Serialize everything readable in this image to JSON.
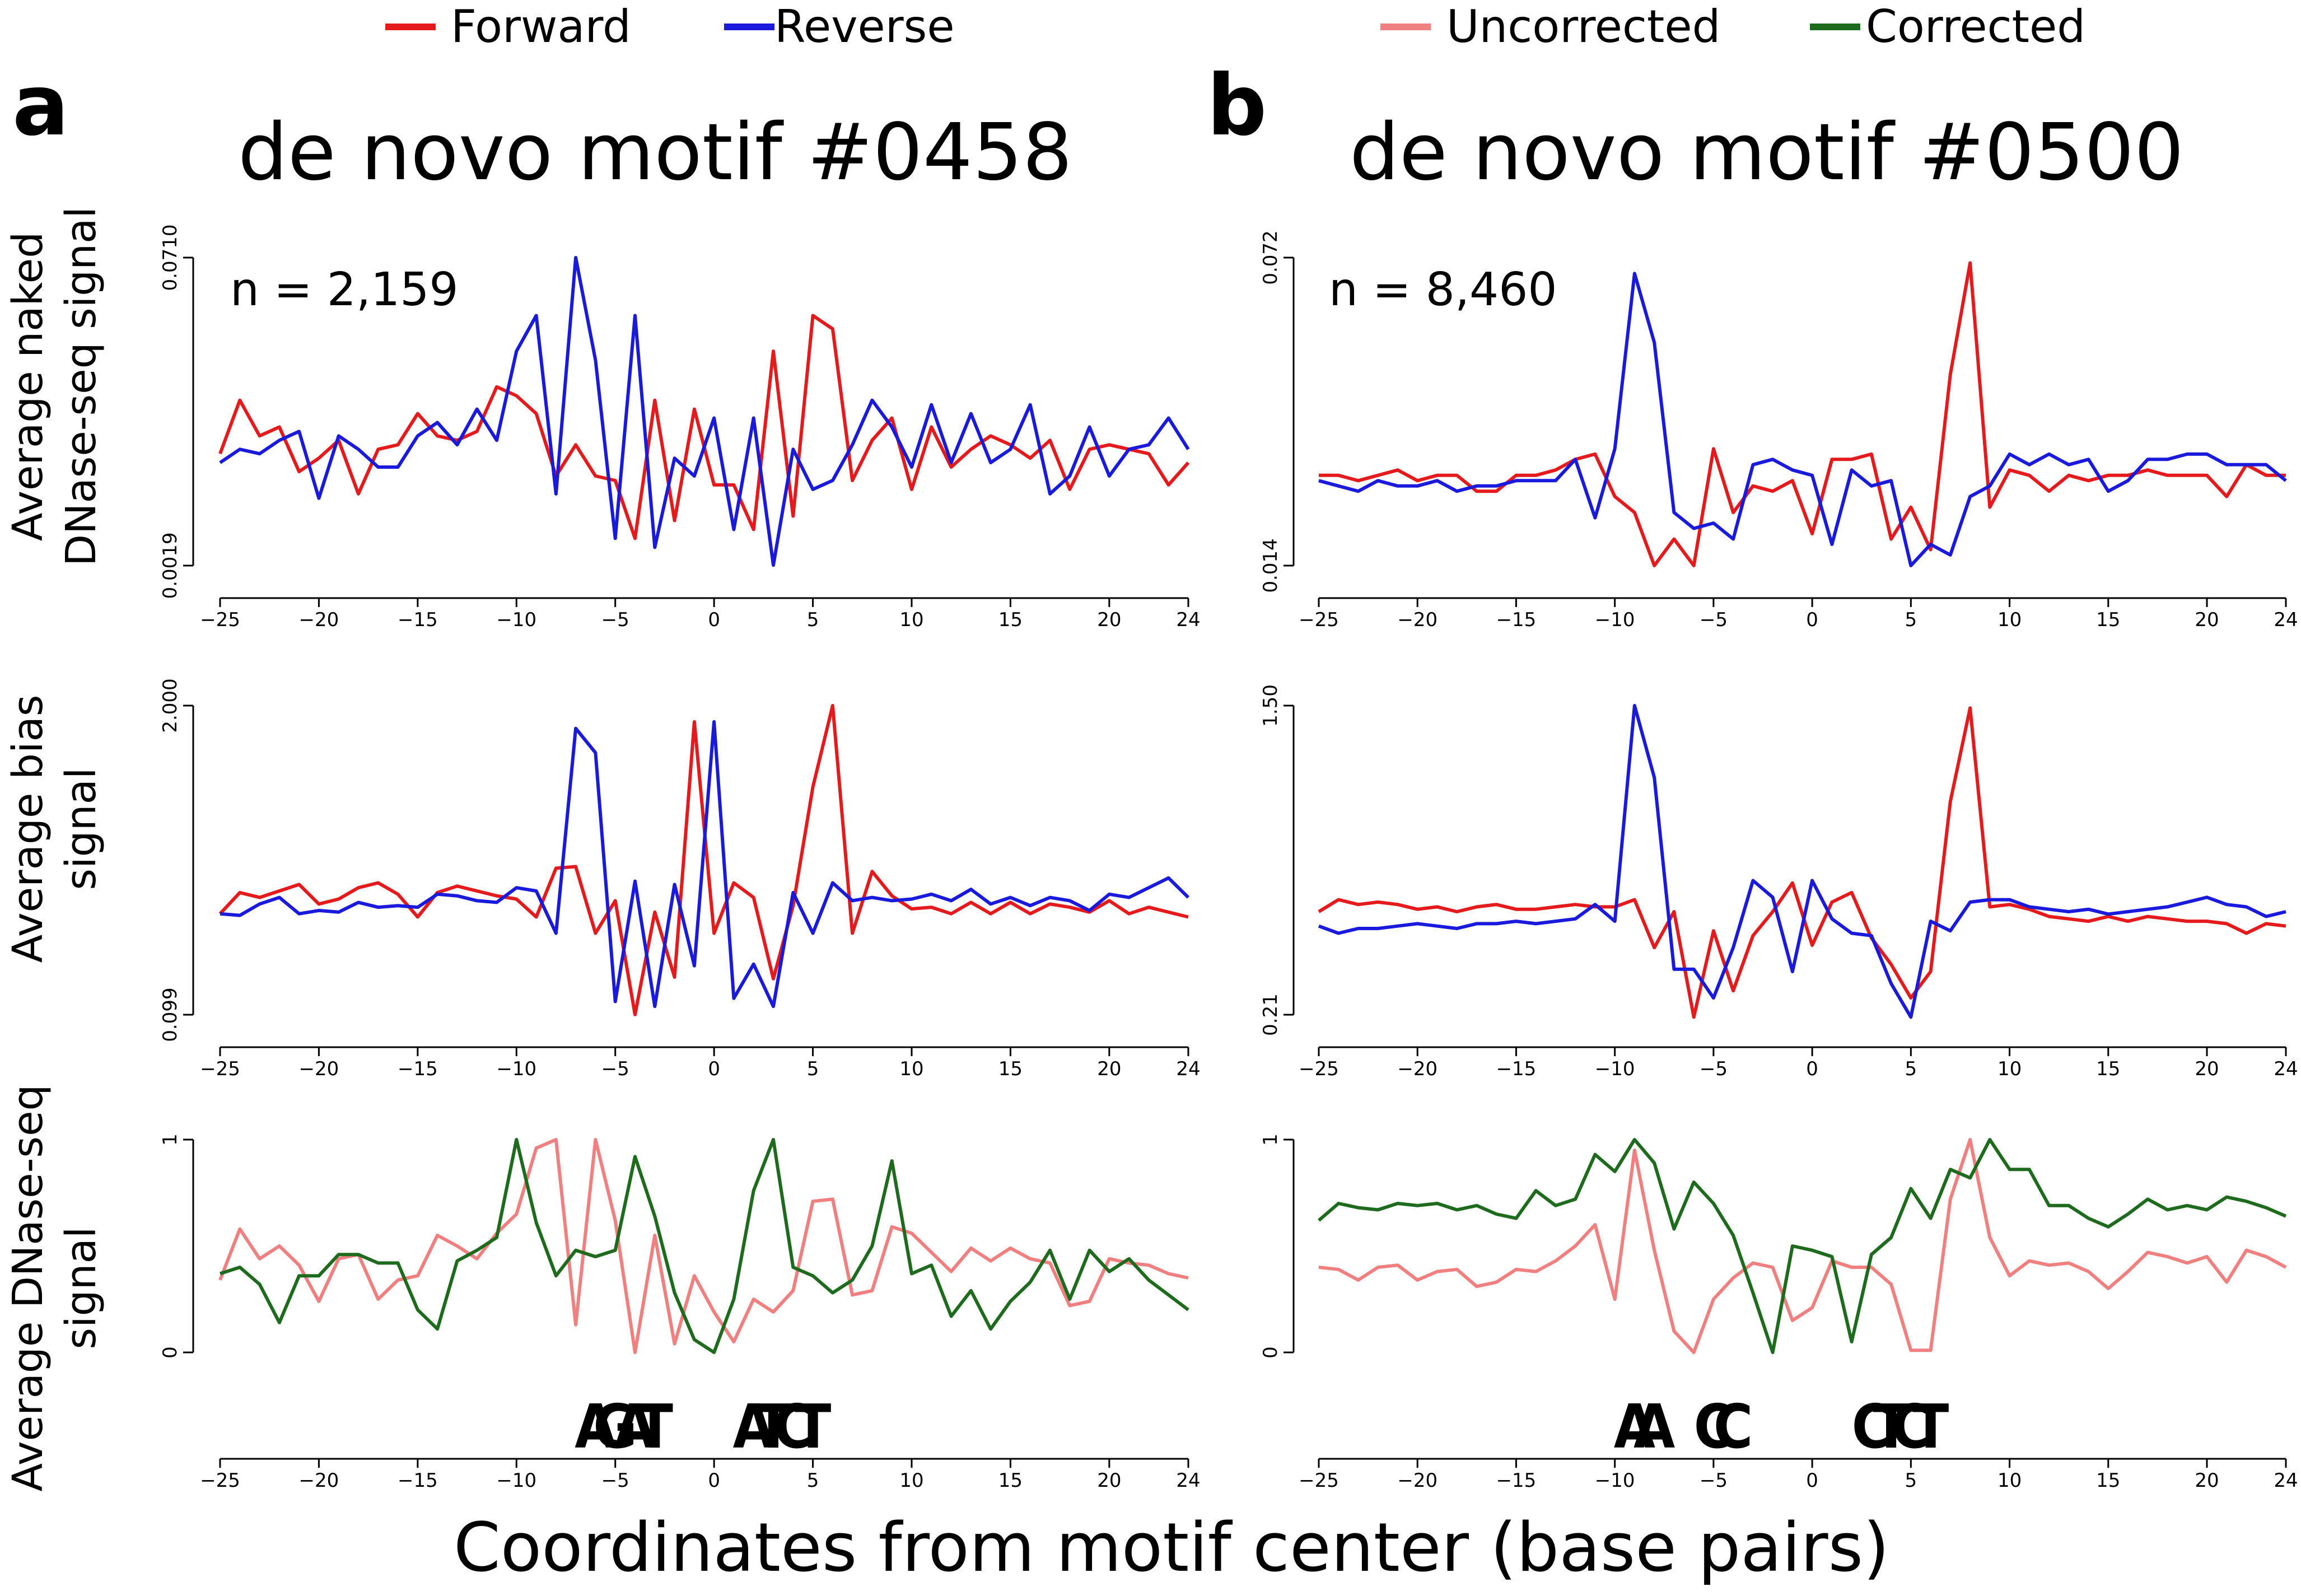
{
  "legends": [
    {
      "items": [
        {
          "label": "Forward",
          "color": "#e41a1c"
        },
        {
          "label": "Reverse",
          "color": "#1a1adc"
        }
      ]
    },
    {
      "items": [
        {
          "label": "Uncorrected",
          "color": "#f08080"
        },
        {
          "label": "Corrected",
          "color": "#1e6b1e"
        }
      ]
    }
  ],
  "panels": [
    {
      "letter": "a",
      "title": "de novo motif #0458"
    },
    {
      "letter": "b",
      "title": "de novo motif #0500"
    }
  ],
  "row_labels": [
    [
      "Average naked",
      "DNase-seq signal"
    ],
    [
      "Average bias",
      "signal"
    ],
    [
      "Average DNase-seq",
      "signal"
    ]
  ],
  "xlabel": "Coordinates from motif center (base pairs)",
  "x_ticks": [
    "−25",
    "−20",
    "−15",
    "−10",
    "−5",
    "0",
    "5",
    "10",
    "15",
    "20",
    "24"
  ],
  "motif_logos": [
    {
      "sites": [
        {
          "x": -6,
          "text": "AGAT"
        },
        {
          "x": 2,
          "text": "ATCT"
        }
      ]
    },
    {
      "sites": [
        {
          "x": -9,
          "text": "AA"
        },
        {
          "x": -5,
          "text": "CC"
        },
        {
          "x": 3,
          "text": "CTCT"
        }
      ]
    }
  ],
  "chart_data": [
    {
      "type": "line",
      "panel": "a",
      "row": 1,
      "annotation": "n = 2,159",
      "ylim": [
        0.0019,
        0.071
      ],
      "yticks": [
        "0.0019",
        "0.0710"
      ],
      "x": [
        -25,
        -24,
        -23,
        -22,
        -21,
        -20,
        -19,
        -18,
        -17,
        -16,
        -15,
        -14,
        -13,
        -12,
        -11,
        -10,
        -9,
        -8,
        -7,
        -6,
        -5,
        -4,
        -3,
        -2,
        -1,
        0,
        1,
        2,
        3,
        4,
        5,
        6,
        7,
        8,
        9,
        10,
        11,
        12,
        13,
        14,
        15,
        16,
        17,
        18,
        19,
        20,
        21,
        22,
        23,
        24
      ],
      "series": [
        {
          "name": "Forward",
          "color": "#e41a1c",
          "values": [
            0.027,
            0.039,
            0.031,
            0.033,
            0.023,
            0.026,
            0.03,
            0.018,
            0.028,
            0.029,
            0.036,
            0.031,
            0.03,
            0.032,
            0.042,
            0.04,
            0.036,
            0.022,
            0.029,
            0.022,
            0.021,
            0.008,
            0.039,
            0.012,
            0.037,
            0.02,
            0.02,
            0.01,
            0.05,
            0.013,
            0.058,
            0.055,
            0.021,
            0.03,
            0.035,
            0.019,
            0.033,
            0.024,
            0.028,
            0.031,
            0.029,
            0.026,
            0.03,
            0.019,
            0.028,
            0.029,
            0.028,
            0.027,
            0.02,
            0.025
          ]
        },
        {
          "name": "Reverse",
          "color": "#1a1adc",
          "values": [
            0.025,
            0.028,
            0.027,
            0.03,
            0.032,
            0.017,
            0.031,
            0.028,
            0.024,
            0.024,
            0.031,
            0.034,
            0.029,
            0.037,
            0.03,
            0.05,
            0.058,
            0.018,
            0.071,
            0.048,
            0.008,
            0.058,
            0.006,
            0.026,
            0.022,
            0.035,
            0.01,
            0.035,
            0.002,
            0.028,
            0.019,
            0.021,
            0.029,
            0.039,
            0.033,
            0.024,
            0.038,
            0.025,
            0.036,
            0.025,
            0.028,
            0.038,
            0.018,
            0.022,
            0.033,
            0.022,
            0.028,
            0.029,
            0.035,
            0.028
          ]
        }
      ]
    },
    {
      "type": "line",
      "panel": "b",
      "row": 1,
      "annotation": "n = 8,460",
      "ylim": [
        0.014,
        0.072
      ],
      "yticks": [
        "0.014",
        "0.072"
      ],
      "x": [
        -25,
        -24,
        -23,
        -22,
        -21,
        -20,
        -19,
        -18,
        -17,
        -16,
        -15,
        -14,
        -13,
        -12,
        -11,
        -10,
        -9,
        -8,
        -7,
        -6,
        -5,
        -4,
        -3,
        -2,
        -1,
        0,
        1,
        2,
        3,
        4,
        5,
        6,
        7,
        8,
        9,
        10,
        11,
        12,
        13,
        14,
        15,
        16,
        17,
        18,
        19,
        20,
        21,
        22,
        23,
        24
      ],
      "series": [
        {
          "name": "Forward",
          "color": "#e41a1c",
          "values": [
            0.031,
            0.031,
            0.03,
            0.031,
            0.032,
            0.03,
            0.031,
            0.031,
            0.028,
            0.028,
            0.031,
            0.031,
            0.032,
            0.034,
            0.035,
            0.027,
            0.024,
            0.014,
            0.019,
            0.014,
            0.036,
            0.024,
            0.029,
            0.028,
            0.03,
            0.02,
            0.034,
            0.034,
            0.035,
            0.019,
            0.025,
            0.017,
            0.05,
            0.071,
            0.025,
            0.032,
            0.031,
            0.028,
            0.031,
            0.03,
            0.031,
            0.031,
            0.032,
            0.031,
            0.031,
            0.031,
            0.027,
            0.033,
            0.031,
            0.031
          ]
        },
        {
          "name": "Reverse",
          "color": "#1a1adc",
          "values": [
            0.03,
            0.029,
            0.028,
            0.03,
            0.029,
            0.029,
            0.03,
            0.028,
            0.029,
            0.029,
            0.03,
            0.03,
            0.03,
            0.034,
            0.023,
            0.036,
            0.069,
            0.056,
            0.024,
            0.021,
            0.022,
            0.019,
            0.033,
            0.034,
            0.032,
            0.031,
            0.018,
            0.032,
            0.029,
            0.03,
            0.014,
            0.018,
            0.016,
            0.027,
            0.029,
            0.035,
            0.033,
            0.035,
            0.033,
            0.034,
            0.028,
            0.03,
            0.034,
            0.034,
            0.035,
            0.035,
            0.033,
            0.033,
            0.033,
            0.03
          ]
        }
      ]
    },
    {
      "type": "line",
      "panel": "a",
      "row": 2,
      "ylim": [
        0.099,
        2.0
      ],
      "yticks": [
        "0.099",
        "2.000"
      ],
      "x": [
        -25,
        -24,
        -23,
        -22,
        -21,
        -20,
        -19,
        -18,
        -17,
        -16,
        -15,
        -14,
        -13,
        -12,
        -11,
        -10,
        -9,
        -8,
        -7,
        -6,
        -5,
        -4,
        -3,
        -2,
        -1,
        0,
        1,
        2,
        3,
        4,
        5,
        6,
        7,
        8,
        9,
        10,
        11,
        12,
        13,
        14,
        15,
        16,
        17,
        18,
        19,
        20,
        21,
        22,
        23,
        24
      ],
      "series": [
        {
          "name": "Forward",
          "color": "#e41a1c",
          "values": [
            0.72,
            0.85,
            0.82,
            0.86,
            0.9,
            0.78,
            0.81,
            0.88,
            0.91,
            0.84,
            0.7,
            0.85,
            0.89,
            0.86,
            0.83,
            0.81,
            0.7,
            1.0,
            1.01,
            0.6,
            0.8,
            0.1,
            0.73,
            0.33,
            1.9,
            0.6,
            0.91,
            0.82,
            0.32,
            0.77,
            1.5,
            2.0,
            0.6,
            0.98,
            0.83,
            0.75,
            0.76,
            0.72,
            0.79,
            0.72,
            0.79,
            0.72,
            0.78,
            0.76,
            0.73,
            0.8,
            0.72,
            0.76,
            0.73,
            0.7
          ]
        },
        {
          "name": "Reverse",
          "color": "#1a1adc",
          "values": [
            0.72,
            0.71,
            0.78,
            0.82,
            0.72,
            0.74,
            0.73,
            0.79,
            0.76,
            0.77,
            0.76,
            0.84,
            0.83,
            0.8,
            0.79,
            0.88,
            0.86,
            0.6,
            1.86,
            1.71,
            0.18,
            0.92,
            0.15,
            0.9,
            0.4,
            1.9,
            0.2,
            0.41,
            0.15,
            0.85,
            0.6,
            0.91,
            0.8,
            0.82,
            0.8,
            0.81,
            0.84,
            0.8,
            0.87,
            0.78,
            0.82,
            0.77,
            0.82,
            0.8,
            0.74,
            0.84,
            0.82,
            0.88,
            0.94,
            0.82
          ]
        }
      ]
    },
    {
      "type": "line",
      "panel": "b",
      "row": 2,
      "ylim": [
        0.21,
        1.5
      ],
      "yticks": [
        "0.21",
        "1.50"
      ],
      "x": [
        -25,
        -24,
        -23,
        -22,
        -21,
        -20,
        -19,
        -18,
        -17,
        -16,
        -15,
        -14,
        -13,
        -12,
        -11,
        -10,
        -9,
        -8,
        -7,
        -6,
        -5,
        -4,
        -3,
        -2,
        -1,
        0,
        1,
        2,
        3,
        4,
        5,
        6,
        7,
        8,
        9,
        10,
        11,
        12,
        13,
        14,
        15,
        16,
        17,
        18,
        19,
        20,
        21,
        22,
        23,
        24
      ],
      "series": [
        {
          "name": "Forward",
          "color": "#e41a1c",
          "values": [
            0.64,
            0.69,
            0.67,
            0.68,
            0.67,
            0.65,
            0.66,
            0.64,
            0.66,
            0.67,
            0.65,
            0.65,
            0.66,
            0.67,
            0.66,
            0.66,
            0.69,
            0.49,
            0.64,
            0.2,
            0.56,
            0.31,
            0.54,
            0.64,
            0.76,
            0.5,
            0.68,
            0.72,
            0.53,
            0.42,
            0.28,
            0.39,
            1.1,
            1.49,
            0.66,
            0.67,
            0.65,
            0.62,
            0.61,
            0.6,
            0.62,
            0.6,
            0.62,
            0.61,
            0.6,
            0.6,
            0.59,
            0.55,
            0.59,
            0.58
          ]
        },
        {
          "name": "Reverse",
          "color": "#1a1adc",
          "values": [
            0.58,
            0.55,
            0.57,
            0.57,
            0.58,
            0.59,
            0.58,
            0.57,
            0.59,
            0.59,
            0.6,
            0.59,
            0.6,
            0.61,
            0.67,
            0.6,
            1.5,
            1.2,
            0.4,
            0.4,
            0.28,
            0.49,
            0.77,
            0.7,
            0.39,
            0.77,
            0.61,
            0.55,
            0.54,
            0.34,
            0.2,
            0.6,
            0.56,
            0.68,
            0.69,
            0.69,
            0.66,
            0.65,
            0.64,
            0.65,
            0.63,
            0.64,
            0.65,
            0.66,
            0.68,
            0.7,
            0.67,
            0.66,
            0.62,
            0.64
          ]
        }
      ]
    },
    {
      "type": "line",
      "panel": "a",
      "row": 3,
      "ylim": [
        0,
        1
      ],
      "yticks": [
        "0",
        "1"
      ],
      "x": [
        -25,
        -24,
        -23,
        -22,
        -21,
        -20,
        -19,
        -18,
        -17,
        -16,
        -15,
        -14,
        -13,
        -12,
        -11,
        -10,
        -9,
        -8,
        -7,
        -6,
        -5,
        -4,
        -3,
        -2,
        -1,
        0,
        1,
        2,
        3,
        4,
        5,
        6,
        7,
        8,
        9,
        10,
        11,
        12,
        13,
        14,
        15,
        16,
        17,
        18,
        19,
        20,
        21,
        22,
        23,
        24
      ],
      "series": [
        {
          "name": "Uncorrected",
          "color": "#f08080",
          "values": [
            0.34,
            0.58,
            0.44,
            0.5,
            0.41,
            0.24,
            0.44,
            0.46,
            0.25,
            0.34,
            0.36,
            0.55,
            0.5,
            0.44,
            0.56,
            0.65,
            0.96,
            1.0,
            0.13,
            1.0,
            0.62,
            0.0,
            0.55,
            0.04,
            0.36,
            0.19,
            0.05,
            0.25,
            0.19,
            0.29,
            0.71,
            0.72,
            0.27,
            0.29,
            0.59,
            0.56,
            0.47,
            0.38,
            0.49,
            0.43,
            0.49,
            0.44,
            0.42,
            0.22,
            0.24,
            0.44,
            0.42,
            0.41,
            0.37,
            0.35
          ]
        },
        {
          "name": "Corrected",
          "color": "#1e6b1e",
          "values": [
            0.37,
            0.4,
            0.32,
            0.14,
            0.36,
            0.36,
            0.46,
            0.46,
            0.42,
            0.42,
            0.2,
            0.11,
            0.43,
            0.48,
            0.54,
            1.0,
            0.61,
            0.36,
            0.48,
            0.45,
            0.48,
            0.92,
            0.64,
            0.28,
            0.06,
            0.0,
            0.25,
            0.76,
            1.0,
            0.4,
            0.36,
            0.28,
            0.34,
            0.5,
            0.9,
            0.37,
            0.41,
            0.17,
            0.29,
            0.11,
            0.24,
            0.33,
            0.48,
            0.25,
            0.48,
            0.38,
            0.44,
            0.34,
            0.27,
            0.2
          ]
        }
      ]
    },
    {
      "type": "line",
      "panel": "b",
      "row": 3,
      "ylim": [
        0,
        1
      ],
      "yticks": [
        "0",
        "1"
      ],
      "x": [
        -25,
        -24,
        -23,
        -22,
        -21,
        -20,
        -19,
        -18,
        -17,
        -16,
        -15,
        -14,
        -13,
        -12,
        -11,
        -10,
        -9,
        -8,
        -7,
        -6,
        -5,
        -4,
        -3,
        -2,
        -1,
        0,
        1,
        2,
        3,
        4,
        5,
        6,
        7,
        8,
        9,
        10,
        11,
        12,
        13,
        14,
        15,
        16,
        17,
        18,
        19,
        20,
        21,
        22,
        23,
        24
      ],
      "series": [
        {
          "name": "Uncorrected",
          "color": "#f08080",
          "values": [
            0.4,
            0.39,
            0.34,
            0.4,
            0.41,
            0.34,
            0.38,
            0.39,
            0.31,
            0.33,
            0.39,
            0.38,
            0.43,
            0.5,
            0.6,
            0.25,
            0.95,
            0.48,
            0.1,
            0.0,
            0.25,
            0.35,
            0.42,
            0.4,
            0.15,
            0.21,
            0.43,
            0.4,
            0.4,
            0.32,
            0.01,
            0.01,
            0.72,
            1.0,
            0.54,
            0.36,
            0.43,
            0.41,
            0.42,
            0.38,
            0.3,
            0.38,
            0.47,
            0.45,
            0.42,
            0.45,
            0.33,
            0.48,
            0.45,
            0.4
          ]
        },
        {
          "name": "Corrected",
          "color": "#1e6b1e",
          "values": [
            0.62,
            0.7,
            0.68,
            0.67,
            0.7,
            0.69,
            0.7,
            0.67,
            0.69,
            0.65,
            0.63,
            0.76,
            0.69,
            0.72,
            0.93,
            0.85,
            1.0,
            0.89,
            0.58,
            0.8,
            0.7,
            0.55,
            0.28,
            0.0,
            0.5,
            0.48,
            0.45,
            0.05,
            0.46,
            0.54,
            0.77,
            0.63,
            0.86,
            0.82,
            1.0,
            0.86,
            0.86,
            0.69,
            0.69,
            0.63,
            0.59,
            0.65,
            0.72,
            0.67,
            0.69,
            0.67,
            0.73,
            0.71,
            0.68,
            0.64
          ]
        }
      ]
    }
  ]
}
